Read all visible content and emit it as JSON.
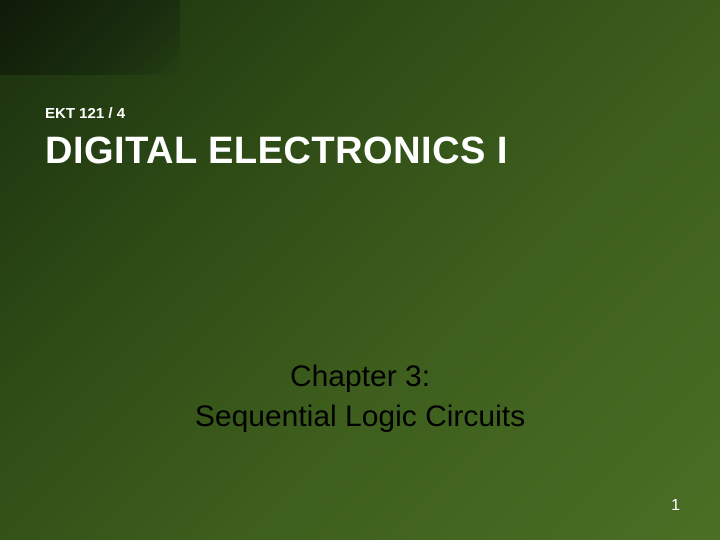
{
  "slide": {
    "course_code": "EKT 121 / 4",
    "main_title": "DIGITAL ELECTRONICS I",
    "chapter_label": "Chapter 3:",
    "chapter_title": "Sequential Logic Circuits",
    "page_number": "1",
    "background_gradient_start": "#1a2f0f",
    "background_gradient_end": "#4a6f24",
    "title_color": "#ffffff",
    "chapter_text_color": "#000000",
    "title_fontsize": 38,
    "course_code_fontsize": 15,
    "chapter_fontsize": 30,
    "page_number_fontsize": 16
  }
}
